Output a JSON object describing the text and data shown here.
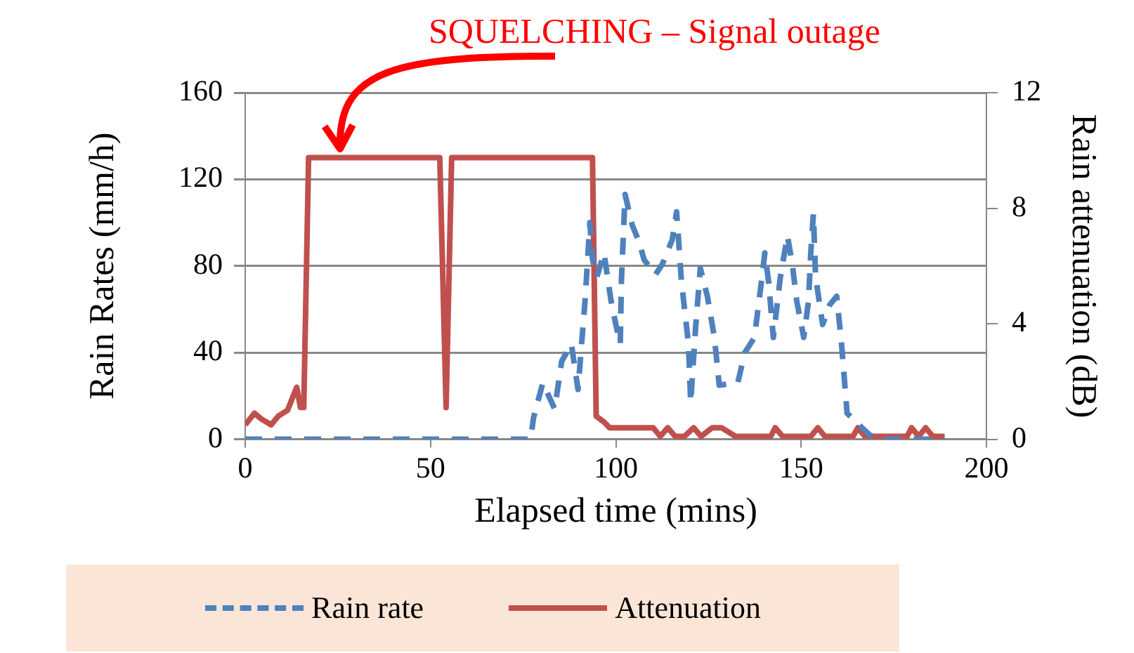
{
  "chart_data": {
    "type": "line",
    "xlabel": "Elapsed time (mins)",
    "ylabel": "Rain Rates (mm/h)",
    "y2label": "Rain attenuation (dB)",
    "xlim": [
      0,
      200
    ],
    "xticks": [
      0,
      50,
      100,
      150,
      200
    ],
    "ylim": [
      0,
      160
    ],
    "yticks": [
      0,
      40,
      80,
      120,
      160
    ],
    "y2lim": [
      0,
      12
    ],
    "y2ticks": [
      0,
      4,
      8,
      12
    ],
    "grid": "y",
    "legend": "bottom",
    "marker": "none",
    "annotations": [
      "SQUELCHING – Signal outage"
    ],
    "series": [
      {
        "name": "Rain rate",
        "color": "#4f81bd",
        "line_style": "dashed",
        "x": [
          0,
          77,
          77.8,
          80.3,
          83.5,
          85.4,
          88,
          89.8,
          90.9,
          91.7,
          93,
          93.7,
          94.9,
          96.8,
          98.7,
          100,
          101.2,
          101.5,
          102.5,
          104.4,
          106.3,
          107.6,
          110.7,
          112.6,
          115.2,
          116.4,
          117.7,
          119.6,
          120.2,
          121.5,
          122.8,
          124.7,
          126.6,
          127.9,
          132.9,
          134.8,
          137.4,
          139.3,
          140.2,
          141.2,
          142.5,
          144.4,
          146.3,
          147.6,
          148.8,
          150.7,
          152,
          152.6,
          153.3,
          153.9,
          155.8,
          157.7,
          159.6,
          160.9,
          162.4,
          166,
          168.5,
          171,
          188.7
        ],
        "values": [
          0,
          0,
          10,
          26,
          14,
          36,
          44,
          23,
          47,
          64,
          100,
          83,
          75,
          86,
          64,
          53,
          44,
          73,
          113,
          99,
          91,
          83,
          76,
          81,
          92,
          105,
          73,
          44,
          17,
          51,
          79,
          66,
          47,
          25,
          26,
          40,
          47,
          73,
          86,
          73,
          47,
          75,
          94,
          81,
          64,
          47,
          64,
          86,
          104,
          75,
          53,
          62,
          66,
          44,
          12,
          6,
          2,
          0,
          0
        ]
      },
      {
        "name": "Attenuation",
        "color": "#c0504d",
        "line_style": "solid",
        "axis": "y2",
        "x": [
          0,
          2.5,
          4.4,
          7,
          8.9,
          11.4,
          13.9,
          14.9,
          15.8,
          17.1,
          52.5,
          54.2,
          55.7,
          93.7,
          94.7,
          96.8,
          98.3,
          110.1,
          112,
          114,
          116,
          118.5,
          121,
          123,
          126,
          128.5,
          132.3,
          141.8,
          143,
          145,
          152.6,
          154.5,
          156.4,
          164,
          165.3,
          167.2,
          178.6,
          179.8,
          181.7,
          183.6,
          185.5,
          188.7
        ],
        "values": [
          0.5,
          0.9,
          0.7,
          0.5,
          0.8,
          1,
          1.8,
          1.1,
          1.1,
          9.75,
          9.75,
          1.1,
          9.75,
          9.75,
          0.8,
          0.6,
          0.4,
          0.4,
          0.1,
          0.4,
          0.1,
          0.1,
          0.4,
          0.1,
          0.4,
          0.4,
          0.1,
          0.1,
          0.4,
          0.1,
          0.1,
          0.4,
          0.1,
          0.1,
          0.4,
          0.1,
          0.1,
          0.4,
          0.1,
          0.4,
          0.1,
          0.1
        ]
      }
    ]
  }
}
